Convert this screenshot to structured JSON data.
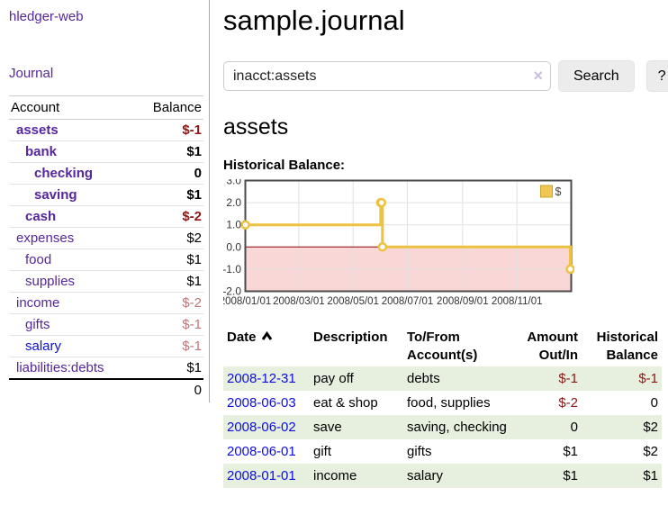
{
  "app": {
    "title": "hledger-web"
  },
  "sidebar": {
    "journal_link": "Journal",
    "accounts_table": {
      "col_account": "Account",
      "col_balance": "Balance",
      "rows": [
        {
          "name": "assets",
          "indent": 1,
          "bold": true,
          "balance": "$-1"
        },
        {
          "name": "bank",
          "indent": 2,
          "bold": true,
          "balance": "$1"
        },
        {
          "name": "checking",
          "indent": 3,
          "bold": true,
          "balance": "0"
        },
        {
          "name": "saving",
          "indent": 3,
          "bold": true,
          "balance": "$1"
        },
        {
          "name": "cash",
          "indent": 2,
          "bold": true,
          "balance": "$-2"
        },
        {
          "name": "expenses",
          "indent": 1,
          "bold": false,
          "balance": "$2"
        },
        {
          "name": "food",
          "indent": 2,
          "bold": false,
          "balance": "$1"
        },
        {
          "name": "supplies",
          "indent": 2,
          "bold": false,
          "balance": "$1"
        },
        {
          "name": "income",
          "indent": 1,
          "bold": false,
          "balance": "$-2"
        },
        {
          "name": "gifts",
          "indent": 2,
          "bold": false,
          "balance": "$-1"
        },
        {
          "name": "salary",
          "indent": 2,
          "bold": false,
          "balance": "$-1",
          "blue_link": true
        },
        {
          "name": "liabilities:debts",
          "indent": 1,
          "bold": false,
          "balance": "$1"
        }
      ],
      "total": "0"
    }
  },
  "header": {
    "title": "sample.journal"
  },
  "search": {
    "value": "inacct:assets",
    "clear_icon": "×",
    "button_label": "Search",
    "help_label": "?"
  },
  "account_page": {
    "title": "assets",
    "chart_label": "Historical Balance:"
  },
  "chart_data": {
    "type": "line",
    "title": "Historical Balance",
    "series": [
      {
        "name": "$",
        "step": true,
        "points": [
          [
            "2008-01-01",
            1
          ],
          [
            "2008-06-01",
            2
          ],
          [
            "2008-06-02",
            2
          ],
          [
            "2008-06-03",
            0
          ],
          [
            "2008-12-31",
            -1
          ]
        ]
      }
    ],
    "x_domain": [
      "2008-01-01",
      "2009-01-01"
    ],
    "x_ticks": [
      "2008-01-01",
      "2008-03-01",
      "2008-05-01",
      "2008-07-01",
      "2008-09-01",
      "2008-11-01"
    ],
    "x_tick_labels": [
      "2008/01/01",
      "2008/03/01",
      "2008/05/01",
      "2008/07/01",
      "2008/09/01",
      "2008/11/01"
    ],
    "ylim": [
      -2,
      3
    ],
    "y_ticks": [
      3,
      2,
      1,
      0,
      -1,
      -2
    ],
    "y_tick_labels": [
      "3.0",
      "2.0",
      "1.0",
      "0.0",
      "-1.0",
      "-2.0"
    ],
    "legend": "$",
    "legend_position": "top-right",
    "grid": true,
    "colors": {
      "line": "#edc240",
      "marker_fill": "#ffffff",
      "negative_region": "#f9d7d7",
      "zero_line": "#8b0000",
      "grid": "#e0e0e0",
      "border": "#4a4a4a",
      "tick_text": "#333333"
    }
  },
  "register_table": {
    "columns": [
      "Date",
      "Description",
      "To/From Account(s)",
      "Amount Out/In",
      "Historical Balance"
    ],
    "rows": [
      {
        "date": "2008-12-31",
        "description": "pay off",
        "accounts": "debts",
        "amount": "$-1",
        "balance": "$-1"
      },
      {
        "date": "2008-06-03",
        "description": "eat & shop",
        "accounts": "food, supplies",
        "amount": "$-2",
        "balance": "0"
      },
      {
        "date": "2008-06-02",
        "description": "save",
        "accounts": "saving, checking",
        "amount": "0",
        "balance": "$2"
      },
      {
        "date": "2008-06-01",
        "description": "gift",
        "accounts": "gifts",
        "amount": "$1",
        "balance": "$2"
      },
      {
        "date": "2008-01-01",
        "description": "income",
        "accounts": "salary",
        "amount": "$1",
        "balance": "$1"
      }
    ]
  }
}
